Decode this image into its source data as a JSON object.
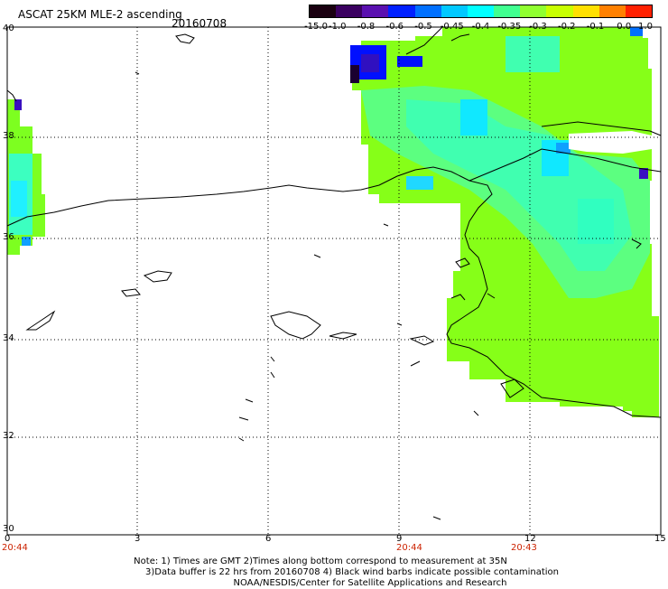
{
  "header": {
    "title": "ASCAT 25KM MLE-2 ascending",
    "date": "20160708"
  },
  "colorbar": {
    "labels": [
      "-15.0",
      "-1.0",
      "-0.8",
      "-0.6",
      "-0.5",
      "-0.45",
      "-0.4",
      "-0.35",
      "-0.3",
      "-0.2",
      "-0.1",
      "0.0",
      "1.0"
    ],
    "colors": [
      "#1a0010",
      "#3a0060",
      "#5a10b0",
      "#0020ff",
      "#0070ff",
      "#00c8ff",
      "#00ffff",
      "#40ff90",
      "#90ff30",
      "#c8ff00",
      "#ffe000",
      "#ff8000",
      "#ff2000"
    ]
  },
  "axes": {
    "x_ticks": [
      "0",
      "3",
      "6",
      "9",
      "12",
      "15"
    ],
    "y_ticks": [
      "40",
      "38",
      "36",
      "34",
      "32",
      "30"
    ]
  },
  "times": [
    "20:44",
    "20:44",
    "20:43"
  ],
  "notes": [
    "Note: 1) Times are GMT 2)Times along bottom correspond to measurement at 35N",
    "3)Data buffer is 22 hrs from 20160708 4) Black wind barbs indicate possible contamination",
    "NOAA/NESDIS/Center for Satellite Applications and Research"
  ]
}
